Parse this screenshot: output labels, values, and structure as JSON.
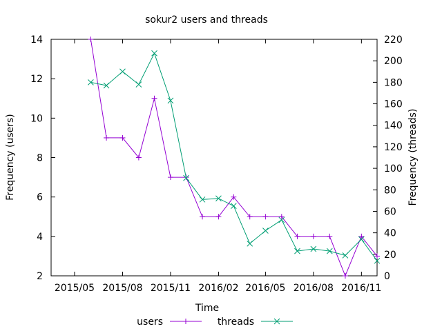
{
  "chart_data": {
    "type": "line",
    "title": "sokur2 users and threads",
    "xlabel": "Time",
    "ylabel": "Frequency (users)",
    "y2label": "Frequency (threads)",
    "grid": false,
    "legend_position": "bottom",
    "x_ticks": [
      "2015/05",
      "2015/08",
      "2015/11",
      "2016/02",
      "2016/05",
      "2016/08",
      "2016/11"
    ],
    "xlim": [
      "2015-03-17",
      "2016-12-01"
    ],
    "ylim": [
      2,
      14
    ],
    "y_ticks": [
      2,
      4,
      6,
      8,
      10,
      12,
      14
    ],
    "y2lim": [
      0,
      220
    ],
    "y2_ticks": [
      0,
      20,
      40,
      60,
      80,
      100,
      120,
      140,
      160,
      180,
      200,
      220
    ],
    "series": [
      {
        "name": "users",
        "axis": "left",
        "color": "#9400d3",
        "marker": "plus",
        "points": [
          {
            "x": "2015-06-01",
            "y": 14
          },
          {
            "x": "2015-07-01",
            "y": 9
          },
          {
            "x": "2015-08-01",
            "y": 9
          },
          {
            "x": "2015-09-01",
            "y": 8
          },
          {
            "x": "2015-10-01",
            "y": 11
          },
          {
            "x": "2015-11-01",
            "y": 7
          },
          {
            "x": "2015-12-01",
            "y": 7
          },
          {
            "x": "2016-01-01",
            "y": 5
          },
          {
            "x": "2016-02-01",
            "y": 5
          },
          {
            "x": "2016-03-01",
            "y": 6
          },
          {
            "x": "2016-04-01",
            "y": 5
          },
          {
            "x": "2016-05-01",
            "y": 5
          },
          {
            "x": "2016-06-01",
            "y": 5
          },
          {
            "x": "2016-07-01",
            "y": 4
          },
          {
            "x": "2016-08-01",
            "y": 4
          },
          {
            "x": "2016-09-01",
            "y": 4
          },
          {
            "x": "2016-10-01",
            "y": 2
          },
          {
            "x": "2016-11-01",
            "y": 4
          },
          {
            "x": "2016-12-01",
            "y": 3
          }
        ]
      },
      {
        "name": "threads",
        "axis": "right",
        "color": "#009e73",
        "marker": "cross",
        "points": [
          {
            "x": "2015-06-01",
            "y": 180
          },
          {
            "x": "2015-07-01",
            "y": 177
          },
          {
            "x": "2015-08-01",
            "y": 190
          },
          {
            "x": "2015-09-01",
            "y": 178
          },
          {
            "x": "2015-10-01",
            "y": 207
          },
          {
            "x": "2015-11-01",
            "y": 163
          },
          {
            "x": "2015-12-01",
            "y": 91
          },
          {
            "x": "2016-01-01",
            "y": 71
          },
          {
            "x": "2016-02-01",
            "y": 72
          },
          {
            "x": "2016-03-01",
            "y": 65
          },
          {
            "x": "2016-04-01",
            "y": 30
          },
          {
            "x": "2016-05-01",
            "y": 42
          },
          {
            "x": "2016-06-01",
            "y": 52
          },
          {
            "x": "2016-07-01",
            "y": 23
          },
          {
            "x": "2016-08-01",
            "y": 25
          },
          {
            "x": "2016-09-01",
            "y": 23
          },
          {
            "x": "2016-10-01",
            "y": 19
          },
          {
            "x": "2016-11-01",
            "y": 34
          },
          {
            "x": "2016-12-01",
            "y": 14
          }
        ]
      }
    ]
  }
}
